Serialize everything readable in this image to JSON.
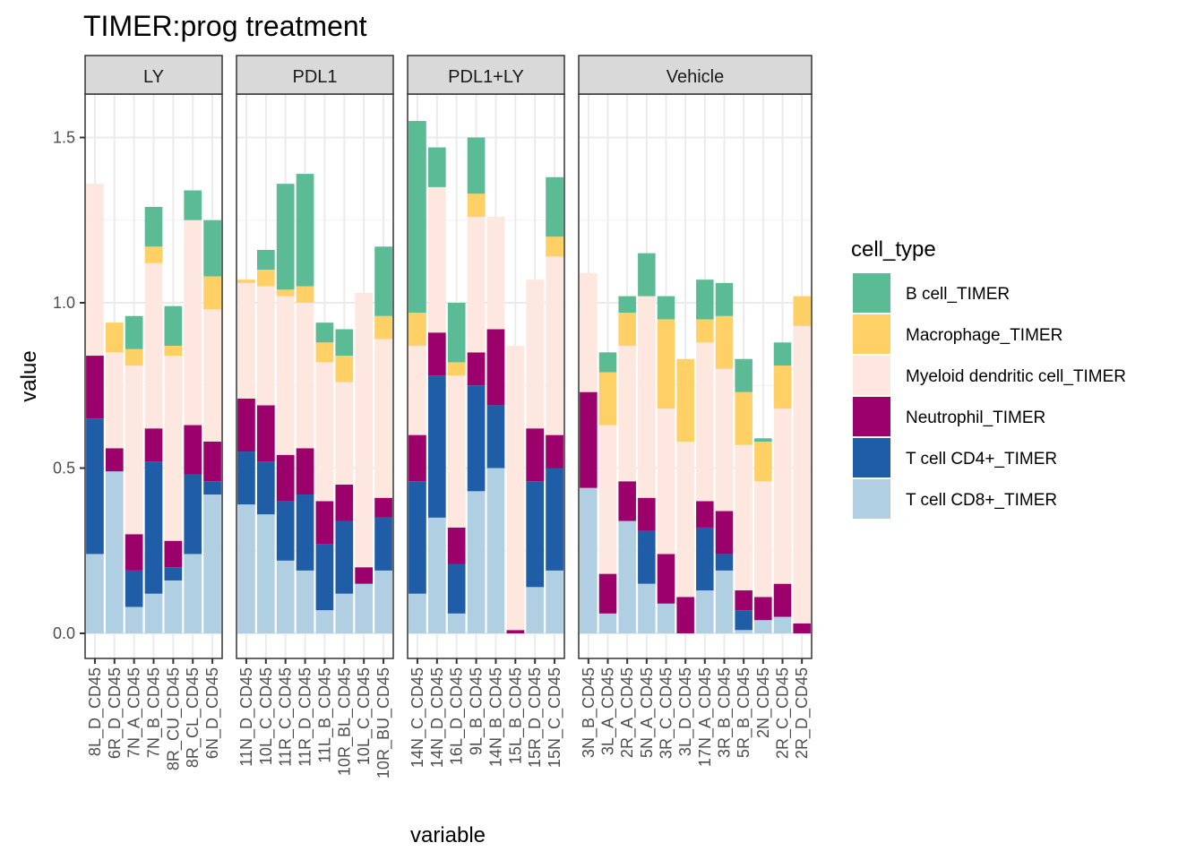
{
  "chart_data": {
    "type": "bar",
    "stacked": true,
    "title": "TIMER:prog treatment",
    "xlabel": "variable",
    "ylabel": "value",
    "ylim": [
      -0.07,
      1.66
    ],
    "y_ticks": [
      "0.0",
      "0.5",
      "1.0",
      "1.5"
    ],
    "grid": true,
    "legend": {
      "title": "cell_type",
      "position": "right",
      "entries": [
        {
          "name": "B cell_TIMER",
          "color": "#5BBB94"
        },
        {
          "name": "Macrophage_TIMER",
          "color": "#FED065"
        },
        {
          "name": "Myeloid dendritic cell_TIMER",
          "color": "#FDE7DF"
        },
        {
          "name": "Neutrophil_TIMER",
          "color": "#9B006B"
        },
        {
          "name": "T cell CD4+_TIMER",
          "color": "#1F5DA7"
        },
        {
          "name": "T cell CD8+_TIMER",
          "color": "#B0CFE3"
        }
      ]
    },
    "stack_order_bottom_to_top": [
      "T cell CD8+_TIMER",
      "T cell CD4+_TIMER",
      "Neutrophil_TIMER",
      "Myeloid dendritic cell_TIMER",
      "Macrophage_TIMER",
      "B cell_TIMER"
    ],
    "facets": [
      {
        "name": "LY",
        "samples": [
          {
            "label": "8L_D_CD45",
            "values": [
              0.24,
              0.41,
              0.19,
              0.52,
              0.0,
              0.0
            ]
          },
          {
            "label": "6R_D_CD45",
            "values": [
              0.49,
              0.0,
              0.07,
              0.29,
              0.09,
              0.0
            ]
          },
          {
            "label": "7N_A_CD45",
            "values": [
              0.08,
              0.11,
              0.11,
              0.51,
              0.05,
              0.1
            ]
          },
          {
            "label": "7N_B_CD45",
            "values": [
              0.12,
              0.4,
              0.1,
              0.5,
              0.05,
              0.12
            ]
          },
          {
            "label": "8R_CU_CD45",
            "values": [
              0.16,
              0.04,
              0.08,
              0.56,
              0.03,
              0.12
            ]
          },
          {
            "label": "8R_CL_CD45",
            "values": [
              0.24,
              0.24,
              0.15,
              0.62,
              0.0,
              0.09
            ]
          },
          {
            "label": "6N_D_CD45",
            "values": [
              0.42,
              0.04,
              0.12,
              0.4,
              0.1,
              0.17
            ]
          }
        ]
      },
      {
        "name": "PDL1",
        "samples": [
          {
            "label": "11N_D_CD45",
            "values": [
              0.39,
              0.16,
              0.16,
              0.35,
              0.01,
              0.0
            ]
          },
          {
            "label": "10L_C_CD45",
            "values": [
              0.36,
              0.16,
              0.17,
              0.36,
              0.05,
              0.06
            ]
          },
          {
            "label": "11R_C_CD45",
            "values": [
              0.22,
              0.18,
              0.14,
              0.48,
              0.02,
              0.32
            ]
          },
          {
            "label": "11R_D_CD45",
            "values": [
              0.19,
              0.23,
              0.14,
              0.44,
              0.05,
              0.34
            ]
          },
          {
            "label": "11L_B_CD45",
            "values": [
              0.07,
              0.2,
              0.13,
              0.42,
              0.06,
              0.06
            ]
          },
          {
            "label": "10R_BL_CD45",
            "values": [
              0.12,
              0.22,
              0.11,
              0.31,
              0.08,
              0.08
            ]
          },
          {
            "label": "10L_C_CD45",
            "values": [
              0.15,
              0.0,
              0.05,
              0.83,
              0.0,
              0.0
            ]
          },
          {
            "label": "10R_BU_CD45",
            "values": [
              0.19,
              0.16,
              0.06,
              0.48,
              0.07,
              0.21
            ]
          }
        ]
      },
      {
        "name": "PDL1+LY",
        "samples": [
          {
            "label": "14N_C_CD45",
            "values": [
              0.12,
              0.34,
              0.14,
              0.27,
              0.1,
              0.58
            ]
          },
          {
            "label": "14N_D_CD45",
            "values": [
              0.35,
              0.43,
              0.13,
              0.44,
              0.0,
              0.12
            ]
          },
          {
            "label": "16L_D_CD45",
            "values": [
              0.06,
              0.15,
              0.11,
              0.46,
              0.04,
              0.18
            ]
          },
          {
            "label": "9L_B_CD45",
            "values": [
              0.43,
              0.32,
              0.1,
              0.41,
              0.07,
              0.17
            ]
          },
          {
            "label": "14N_B_CD45",
            "values": [
              0.5,
              0.19,
              0.23,
              0.34,
              0.0,
              0.0
            ]
          },
          {
            "label": "15L_B_CD45",
            "values": [
              0.0,
              0.0,
              0.01,
              0.86,
              0.0,
              0.0
            ]
          },
          {
            "label": "15R_D_CD45",
            "values": [
              0.14,
              0.32,
              0.16,
              0.45,
              0.0,
              0.0
            ]
          },
          {
            "label": "15N_C_CD45",
            "values": [
              0.19,
              0.31,
              0.1,
              0.54,
              0.06,
              0.18
            ]
          }
        ]
      },
      {
        "name": "Vehicle",
        "samples": [
          {
            "label": "3N_B_CD45",
            "values": [
              0.44,
              0.0,
              0.29,
              0.36,
              0.0,
              0.0
            ]
          },
          {
            "label": "3L_A_CD45",
            "values": [
              0.06,
              0.0,
              0.12,
              0.45,
              0.16,
              0.06
            ]
          },
          {
            "label": "2R_A_CD45",
            "values": [
              0.34,
              0.0,
              0.12,
              0.41,
              0.1,
              0.05
            ]
          },
          {
            "label": "5N_A_CD45",
            "values": [
              0.15,
              0.16,
              0.1,
              0.61,
              0.0,
              0.13
            ]
          },
          {
            "label": "3R_C_CD45",
            "values": [
              0.09,
              0.0,
              0.15,
              0.44,
              0.27,
              0.07
            ]
          },
          {
            "label": "3L_D_CD45",
            "values": [
              0.0,
              0.0,
              0.11,
              0.47,
              0.25,
              0.0
            ]
          },
          {
            "label": "17N_A_CD45",
            "values": [
              0.13,
              0.19,
              0.08,
              0.48,
              0.07,
              0.12
            ]
          },
          {
            "label": "3R_B_CD45",
            "values": [
              0.19,
              0.05,
              0.13,
              0.43,
              0.16,
              0.1
            ]
          },
          {
            "label": "5R_B_CD45",
            "values": [
              0.01,
              0.06,
              0.06,
              0.44,
              0.16,
              0.1
            ]
          },
          {
            "label": "2N_CD45",
            "values": [
              0.04,
              0.0,
              0.07,
              0.35,
              0.12,
              0.01
            ]
          },
          {
            "label": "2R_C_CD45",
            "values": [
              0.05,
              0.0,
              0.1,
              0.53,
              0.13,
              0.07
            ]
          },
          {
            "label": "2R_D_CD45",
            "values": [
              0.0,
              0.0,
              0.03,
              0.9,
              0.09,
              0.0
            ]
          }
        ]
      }
    ]
  }
}
